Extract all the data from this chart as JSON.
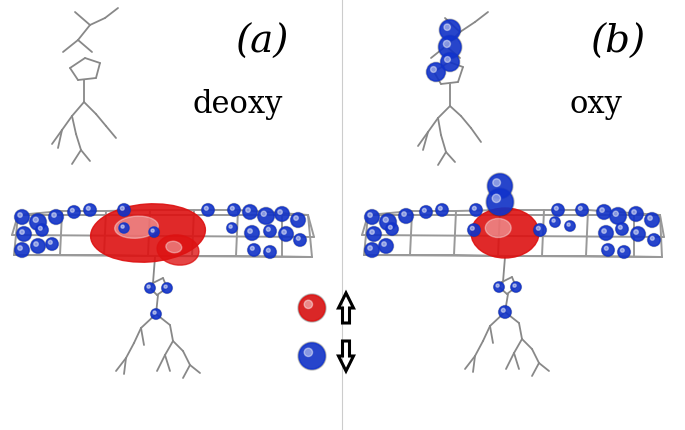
{
  "title_a": "(a)",
  "title_b": "(b)",
  "label_a": "deoxy",
  "label_b": "oxy",
  "red_color": "#dd1111",
  "blue_color": "#1133cc",
  "bg_color": "#ffffff",
  "fig_width": 6.85,
  "fig_height": 4.3,
  "dpi": 100,
  "title_fontsize": 28,
  "label_fontsize": 22
}
